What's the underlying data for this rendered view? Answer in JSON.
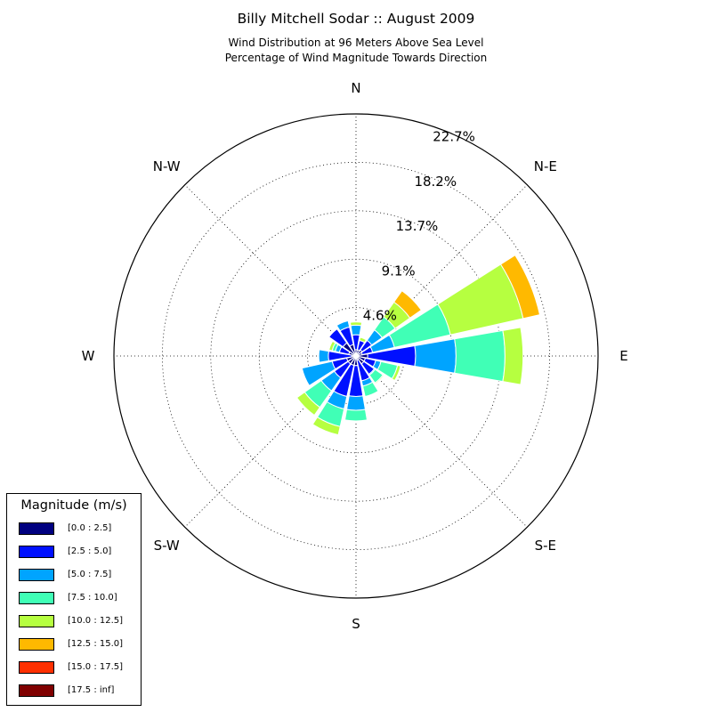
{
  "title": "Billy Mitchell Sodar :: August 2009",
  "subtitle_line1": "Wind Distribution at 96 Meters Above Sea Level",
  "subtitle_line2": "Percentage of Wind Magnitude Towards Direction",
  "chart_data": {
    "type": "windrose",
    "directions": [
      "N",
      "N-E",
      "E",
      "S-E",
      "S",
      "S-W",
      "W",
      "N-W"
    ],
    "radial_ticks": [
      "4.6%",
      "9.1%",
      "13.7%",
      "18.2%",
      "22.7%"
    ],
    "radial_tick_values": [
      4.55,
      9.1,
      13.65,
      18.2,
      22.75
    ],
    "rmax": 22.75,
    "sectors_per_circle": 16,
    "sector_bearings_deg": [
      0,
      22.5,
      45,
      67.5,
      90,
      112.5,
      135,
      157.5,
      180,
      202.5,
      225,
      247.5,
      270,
      292.5,
      315,
      337.5
    ],
    "bins": [
      {
        "label": "[0.0 : 2.5]",
        "color": "#000080"
      },
      {
        "label": "[2.5 : 5.0]",
        "color": "#0010ff"
      },
      {
        "label": "[5.0 : 7.5]",
        "color": "#00a4ff"
      },
      {
        "label": "[7.5 : 10.0]",
        "color": "#40ffb6"
      },
      {
        "label": "[10.0 : 12.5]",
        "color": "#b6ff40"
      },
      {
        "label": "[12.5 : 15.0]",
        "color": "#ffb900"
      },
      {
        "label": "[15.0 : 17.5]",
        "color": "#ff3000"
      },
      {
        "label": "[17.5 : inf]",
        "color": "#800000"
      }
    ],
    "cumulative_percent": [
      [
        0.6,
        2.0,
        2.9,
        2.9,
        3.2,
        3.2,
        3.2,
        3.2
      ],
      [
        0.6,
        1.5,
        1.5,
        1.5,
        1.8,
        1.8,
        1.8,
        1.8
      ],
      [
        0.7,
        1.8,
        3.0,
        4.5,
        6.2,
        7.5,
        7.5,
        7.5
      ],
      [
        0.6,
        1.6,
        3.7,
        9.1,
        16.1,
        17.7,
        17.7,
        17.7
      ],
      [
        1.1,
        5.6,
        9.4,
        14.0,
        15.7,
        15.7,
        15.7,
        15.7
      ],
      [
        0.9,
        1.9,
        2.4,
        4.0,
        4.3,
        4.3,
        4.3,
        4.3
      ],
      [
        0.9,
        2.1,
        2.2,
        3.1,
        3.2,
        3.2,
        3.2,
        3.2
      ],
      [
        0.4,
        2.4,
        2.9,
        3.9,
        3.9,
        3.9,
        3.9,
        3.9
      ],
      [
        0.9,
        3.8,
        5.1,
        6.1,
        6.1,
        6.1,
        6.1,
        6.1
      ],
      [
        0.9,
        3.9,
        5.1,
        6.8,
        7.6,
        7.6,
        7.6,
        7.6
      ],
      [
        0.9,
        2.5,
        4.0,
        5.9,
        6.8,
        6.8,
        6.8,
        6.8
      ],
      [
        0.9,
        2.3,
        5.2,
        5.2,
        5.2,
        5.2,
        5.2,
        5.2
      ],
      [
        0.4,
        2.6,
        3.5,
        3.5,
        3.5,
        3.5,
        3.5,
        3.5
      ],
      [
        0.7,
        1.6,
        2.0,
        2.3,
        2.6,
        2.6,
        2.6,
        2.6
      ],
      [
        1.5,
        3.1,
        3.1,
        3.1,
        3.1,
        3.1,
        3.1,
        3.1
      ],
      [
        1.1,
        2.8,
        3.4,
        3.4,
        3.4,
        3.4,
        3.4,
        3.4
      ]
    ]
  },
  "legend": {
    "title": "Magnitude (m/s)"
  }
}
